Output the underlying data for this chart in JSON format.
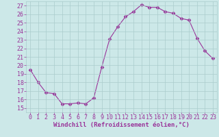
{
  "x": [
    0,
    1,
    2,
    3,
    4,
    5,
    6,
    7,
    8,
    9,
    10,
    11,
    12,
    13,
    14,
    15,
    16,
    17,
    18,
    19,
    20,
    21,
    22,
    23
  ],
  "y": [
    19.5,
    18.0,
    16.8,
    16.7,
    15.5,
    15.5,
    15.6,
    15.5,
    16.2,
    19.8,
    23.1,
    24.5,
    25.7,
    26.3,
    27.1,
    26.8,
    26.8,
    26.3,
    26.1,
    25.5,
    25.3,
    23.2,
    21.7,
    20.8
  ],
  "line_color": "#993399",
  "marker": "D",
  "marker_size": 2.5,
  "bg_color": "#cce8e8",
  "grid_color": "#aacccc",
  "xlabel": "Windchill (Refroidissement éolien,°C)",
  "xlabel_color": "#993399",
  "xlabel_fontsize": 6.5,
  "tick_color": "#993399",
  "tick_fontsize": 6,
  "ylim": [
    14.5,
    27.5
  ],
  "yticks": [
    15,
    16,
    17,
    18,
    19,
    20,
    21,
    22,
    23,
    24,
    25,
    26,
    27
  ],
  "xlim": [
    -0.5,
    23.5
  ],
  "xticks": [
    0,
    1,
    2,
    3,
    4,
    5,
    6,
    7,
    8,
    9,
    10,
    11,
    12,
    13,
    14,
    15,
    16,
    17,
    18,
    19,
    20,
    21,
    22,
    23
  ],
  "xtick_labels": [
    "0",
    "1",
    "2",
    "3",
    "4",
    "5",
    "6",
    "7",
    "8",
    "9",
    "10",
    "11",
    "12",
    "13",
    "14",
    "15",
    "16",
    "17",
    "18",
    "19",
    "20",
    "21",
    "22",
    "23"
  ]
}
